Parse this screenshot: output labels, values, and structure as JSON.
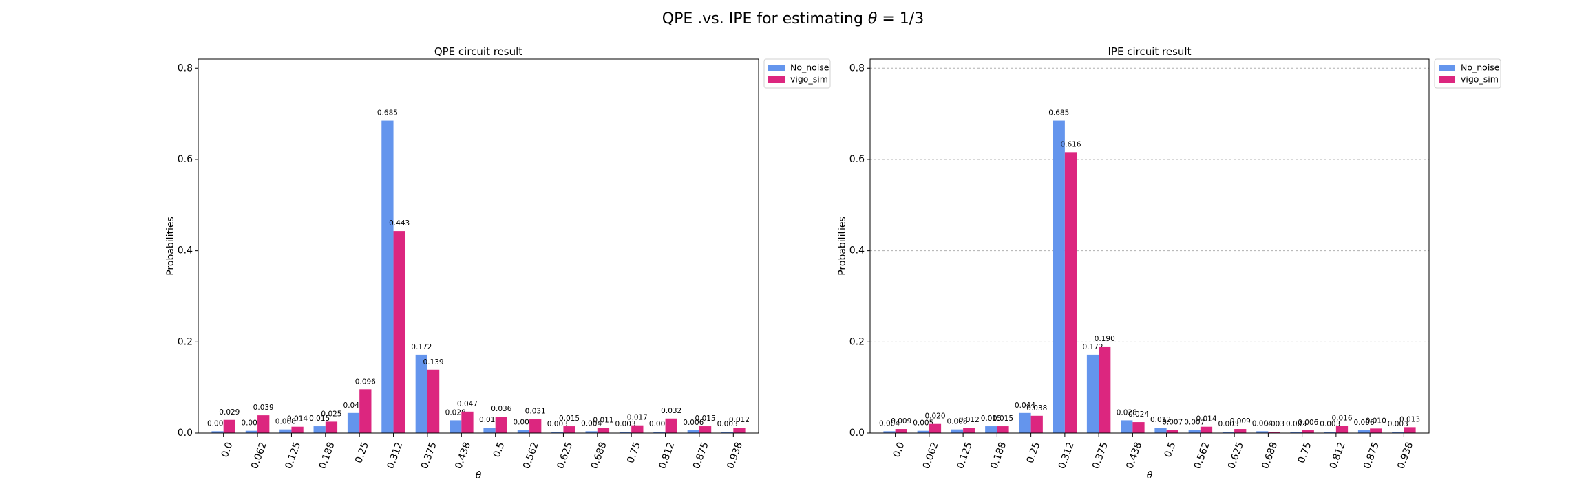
{
  "figure": {
    "suptitle_prefix": "QPE .vs. IPE for estimating ",
    "suptitle_theta": "θ",
    "suptitle_suffix": " = 1/3"
  },
  "chart_data": [
    {
      "type": "bar",
      "title": "QPE circuit result",
      "xlabel": "θ",
      "ylabel": "Probabilities",
      "ylim": [
        0,
        0.82
      ],
      "yticks": [
        "0.0",
        "0.2",
        "0.4",
        "0.6",
        "0.8"
      ],
      "grid": false,
      "legend_position": "outside-right-top",
      "categories": [
        "0.0",
        "0.062",
        "0.125",
        "0.188",
        "0.25",
        "0.312",
        "0.375",
        "0.438",
        "0.5",
        "0.562",
        "0.625",
        "0.688",
        "0.75",
        "0.812",
        "0.875",
        "0.938"
      ],
      "series": [
        {
          "name": "No_noise",
          "color": "#6495ed",
          "values": [
            0.004,
            0.005,
            0.008,
            0.015,
            0.044,
            0.685,
            0.172,
            0.028,
            0.012,
            0.007,
            0.003,
            0.004,
            0.003,
            0.003,
            0.006,
            0.003
          ],
          "labels": [
            "0.004",
            "0.005",
            "0.008",
            "0.015",
            "0.044",
            "0.685",
            "0.172",
            "0.028",
            "0.012",
            "0.007",
            "0.003",
            "0.004",
            "0.003",
            "0.003",
            "0.006",
            "0.003"
          ]
        },
        {
          "name": "vigo_sim",
          "color": "#dc267f",
          "values": [
            0.029,
            0.039,
            0.014,
            0.025,
            0.096,
            0.443,
            0.139,
            0.047,
            0.036,
            0.031,
            0.015,
            0.011,
            0.017,
            0.032,
            0.015,
            0.012
          ],
          "labels": [
            "0.029",
            "0.039",
            "0.014",
            "0.025",
            "0.096",
            "0.443",
            "0.139",
            "0.047",
            "0.036",
            "0.031",
            "0.015",
            "0.011",
            "0.017",
            "0.032",
            "0.015",
            "0.012"
          ]
        }
      ]
    },
    {
      "type": "bar",
      "title": "IPE circuit result",
      "xlabel": "θ",
      "ylabel": "Probabilities",
      "ylim": [
        0,
        0.82
      ],
      "yticks": [
        "0.0",
        "0.2",
        "0.4",
        "0.6",
        "0.8"
      ],
      "grid": true,
      "legend_position": "outside-right-top",
      "categories": [
        "0.0",
        "0.062",
        "0.125",
        "0.188",
        "0.25",
        "0.312",
        "0.375",
        "0.438",
        "0.5",
        "0.562",
        "0.625",
        "0.688",
        "0.75",
        "0.812",
        "0.875",
        "0.938"
      ],
      "series": [
        {
          "name": "No_noise",
          "color": "#6495ed",
          "values": [
            0.004,
            0.005,
            0.008,
            0.015,
            0.044,
            0.685,
            0.172,
            0.028,
            0.012,
            0.007,
            0.003,
            0.004,
            0.003,
            0.003,
            0.006,
            0.003
          ],
          "labels": [
            "0.004",
            "0.005",
            "0.008",
            "0.015",
            "0.044",
            "0.685",
            "0.172",
            "0.028",
            "0.012",
            "0.007",
            "0.003",
            "0.004",
            "0.003",
            "0.003",
            "0.006",
            "0.003"
          ]
        },
        {
          "name": "vigo_sim",
          "color": "#dc267f",
          "values": [
            0.009,
            0.02,
            0.012,
            0.015,
            0.038,
            0.616,
            0.19,
            0.024,
            0.007,
            0.014,
            0.009,
            0.003,
            0.006,
            0.016,
            0.01,
            0.013
          ],
          "labels": [
            "0.009",
            "0.020",
            "0.012",
            "0.015",
            "0.038",
            "0.616",
            "0.190",
            "0.024",
            "0.007",
            "0.014",
            "0.009",
            "0.003",
            "0.006",
            "0.016",
            "0.010",
            "0.013"
          ]
        }
      ]
    }
  ]
}
